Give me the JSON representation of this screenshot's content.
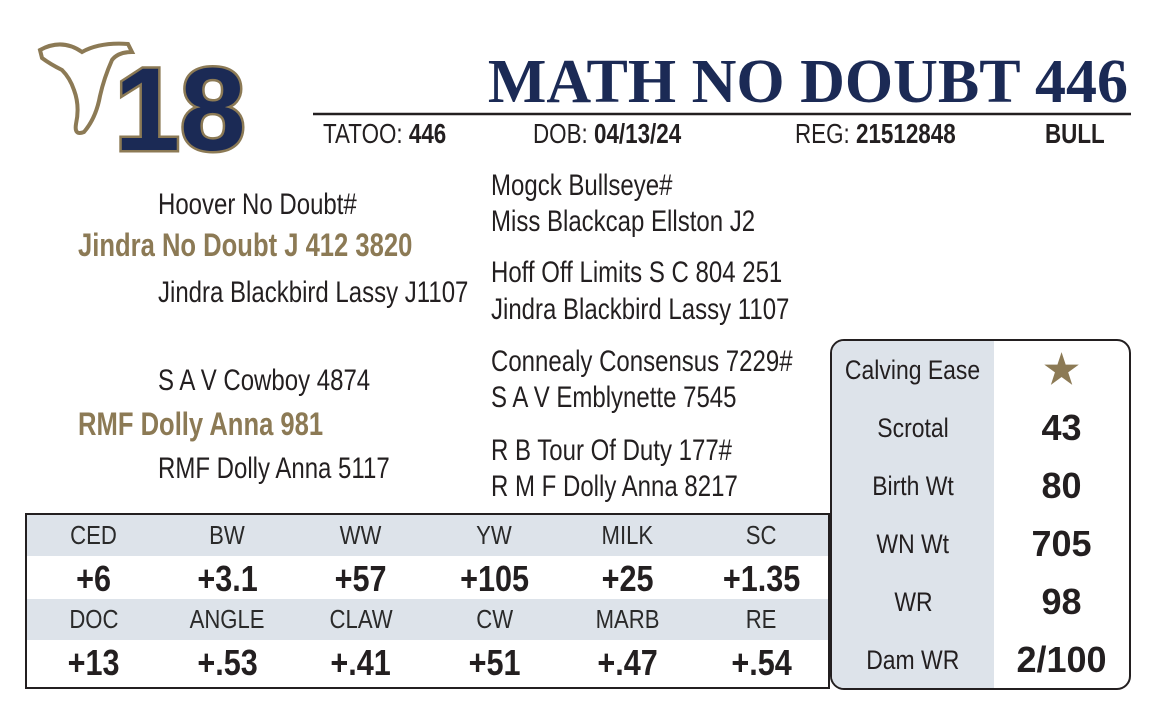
{
  "lot_number": "18",
  "title": "MATH NO DOUBT 446",
  "info": {
    "tattoo_label": "TATOO:",
    "tattoo": "446",
    "dob_label": "DOB:",
    "dob": "04/13/24",
    "reg_label": "REG:",
    "reg": "21512848",
    "sex": "BULL"
  },
  "pedigree": {
    "sire": {
      "name": "Jindra No Doubt J 412 3820",
      "sire": "Hoover No Doubt#",
      "dam": "Jindra Blackbird Lassy J1107",
      "sire_parents": [
        "Mogck Bullseye#",
        "Miss Blackcap Ellston J2"
      ],
      "dam_parents": [
        "Hoff Off Limits S C 804 251",
        "Jindra Blackbird Lassy 1107"
      ]
    },
    "dam": {
      "name": "RMF Dolly Anna 981",
      "sire": "S A V Cowboy 4874",
      "dam": "RMF Dolly Anna 5117",
      "sire_parents": [
        "Connealy Consensus 7229#",
        "S A V Emblynette 7545"
      ],
      "dam_parents": [
        "R B Tour Of Duty 177#",
        "R M F Dolly Anna 8217"
      ]
    }
  },
  "epds": [
    {
      "labels": [
        "CED",
        "BW",
        "WW",
        "YW",
        "MILK",
        "SC"
      ],
      "values": [
        "+6",
        "+3.1",
        "+57",
        "+105",
        "+25",
        "+1.35"
      ]
    },
    {
      "labels": [
        "DOC",
        "ANGLE",
        "CLAW",
        "CW",
        "MARB",
        "RE"
      ],
      "values": [
        "+13",
        "+.53",
        "+.41",
        "+51",
        "+.47",
        "+.54"
      ]
    }
  ],
  "stats": [
    {
      "label": "Calving Ease",
      "value": "★"
    },
    {
      "label": "Scrotal",
      "value": "43"
    },
    {
      "label": "Birth Wt",
      "value": "80"
    },
    {
      "label": "WN Wt",
      "value": "705"
    },
    {
      "label": "WR",
      "value": "98"
    },
    {
      "label": "Dam WR",
      "value": "2/100"
    }
  ]
}
